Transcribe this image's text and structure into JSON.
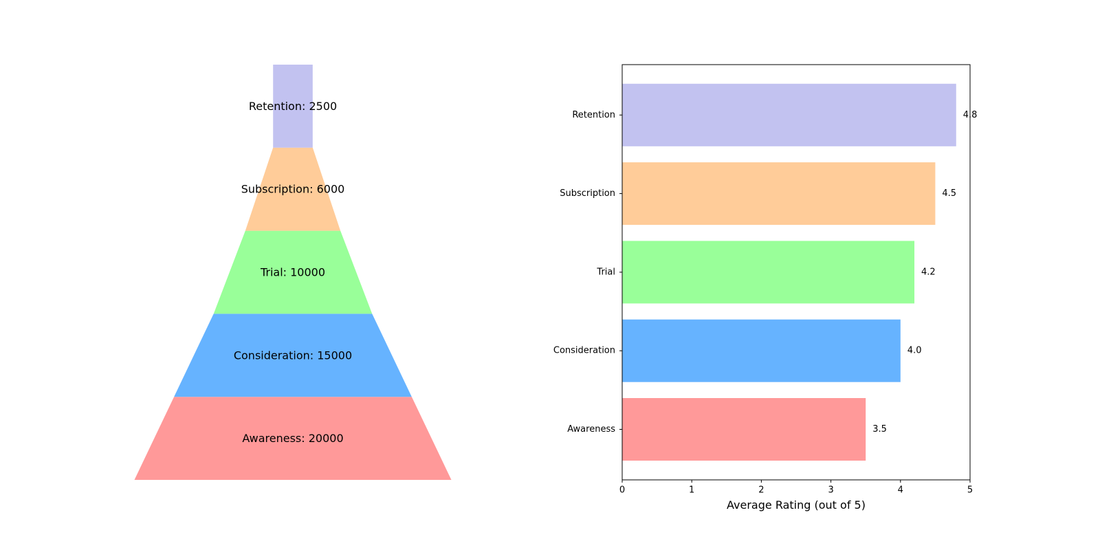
{
  "chart_data": [
    {
      "type": "funnel",
      "stages": [
        {
          "name": "Awareness",
          "value": 20000,
          "label": "Awareness: 20000",
          "color": "#ff9999"
        },
        {
          "name": "Consideration",
          "value": 15000,
          "label": "Consideration: 15000",
          "color": "#66b3ff"
        },
        {
          "name": "Trial",
          "value": 10000,
          "label": "Trial: 10000",
          "color": "#99ff99"
        },
        {
          "name": "Subscription",
          "value": 6000,
          "label": "Subscription: 6000",
          "color": "#ffcc99"
        },
        {
          "name": "Retention",
          "value": 2500,
          "label": "Retention: 2500",
          "color": "#c2c2f0"
        }
      ]
    },
    {
      "type": "bar",
      "orientation": "horizontal",
      "categories": [
        "Awareness",
        "Consideration",
        "Trial",
        "Subscription",
        "Retention"
      ],
      "values": [
        3.5,
        4.0,
        4.2,
        4.5,
        4.8
      ],
      "value_labels": [
        "3.5",
        "4.0",
        "4.2",
        "4.5",
        "4.8"
      ],
      "colors": [
        "#ff9999",
        "#66b3ff",
        "#99ff99",
        "#ffcc99",
        "#c2c2f0"
      ],
      "xlabel": "Average Rating (out of 5)",
      "xlim": [
        0,
        5
      ],
      "xticks": [
        "0",
        "1",
        "2",
        "3",
        "4",
        "5"
      ],
      "grid": false
    }
  ]
}
